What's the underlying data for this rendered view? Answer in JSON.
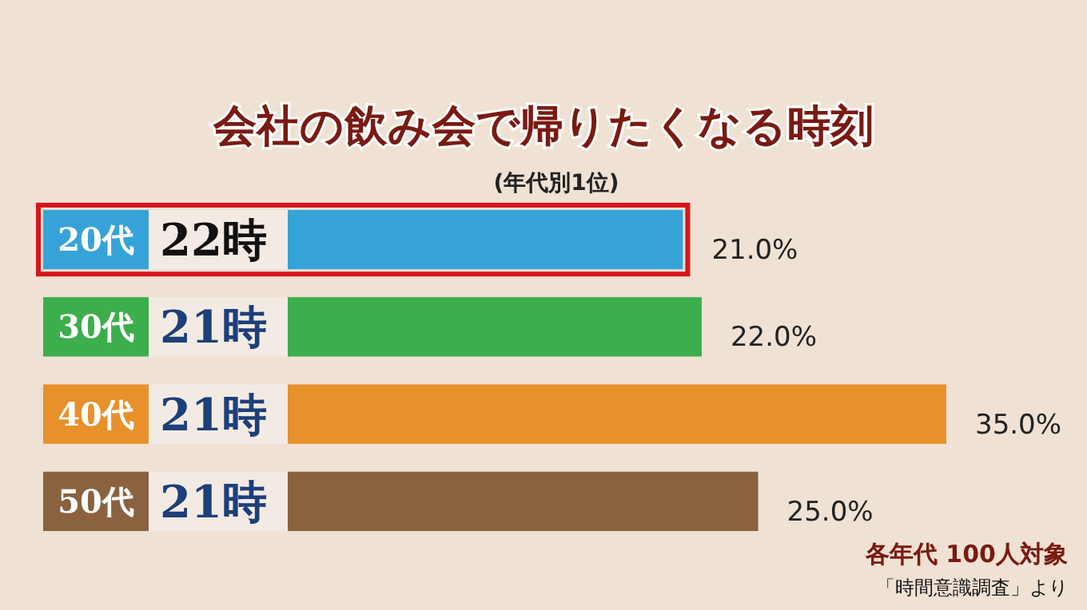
{
  "chart_data": {
    "type": "bar",
    "orientation": "horizontal",
    "relative": false,
    "title": "会社の飲み会で帰りたくなる時刻",
    "subtitle": "(年代別1位)",
    "categories": [
      "20代",
      "30代",
      "40代",
      "50代"
    ],
    "values": [
      21.0,
      22.0,
      35.0,
      25.0
    ],
    "colors": [
      "#36a3d8",
      "#3cae4c",
      "#e8902c",
      "#8a6240"
    ],
    "value_labels": [
      "21.0%",
      "22.0%",
      "35.0%",
      "25.0%"
    ],
    "annotations": [
      "22時",
      "21時",
      "21時",
      "21時",
      "各年代 100人対象",
      "「時間意識調査」より"
    ]
  }
}
